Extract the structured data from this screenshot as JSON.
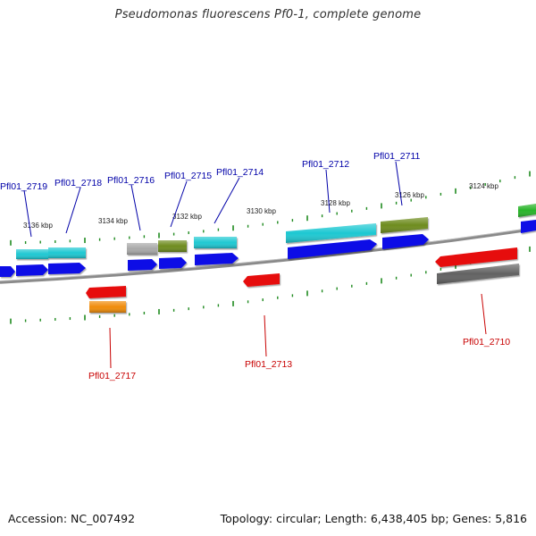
{
  "title": "Pseudomonas fluorescens Pf0-1, complete genome",
  "footer": {
    "accession": "Accession: NC_007492",
    "summary": "Topology: circular; Length: 6,438,405 bp; Genes: 5,816"
  },
  "colors": {
    "backbone": "#7d7d7d",
    "tick": "#1f8a1f",
    "forward_label": "#0000a8",
    "reverse_label": "#c80000",
    "blue": "#0a0ae6",
    "cyan": "#1ec8d2",
    "olive": "#6e8c1e",
    "gray": "#a8a8a8",
    "darkgray": "#626262",
    "red": "#e60f0f",
    "orange": "#f08c0a",
    "green": "#28b428"
  },
  "scale_labels": [
    "3136 kbp",
    "3134 kbp",
    "3132 kbp",
    "3130 kbp",
    "3128 kbp",
    "3126 kbp",
    "3124 kbp"
  ],
  "forward_gene_labels": [
    "Pfl01_2719",
    "Pfl01_2718",
    "Pfl01_2716",
    "Pfl01_2715",
    "Pfl01_2714",
    "Pfl01_2712",
    "Pfl01_2711"
  ],
  "reverse_gene_labels": [
    "Pfl01_2717",
    "Pfl01_2713",
    "Pfl01_2710"
  ]
}
